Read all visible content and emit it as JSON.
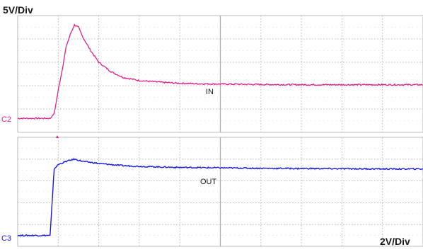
{
  "top_scale": "5V/Div",
  "bottom_scale": "2V/Div",
  "colors": {
    "c2": "#e0208a",
    "c3": "#1a1ad6",
    "grid": "#a8a8a8",
    "dots": "#c4c4c4",
    "text": "#1a1a1a"
  },
  "chart_data": [
    {
      "type": "line",
      "channel": "C2",
      "scale": "5V/Div",
      "grid": true,
      "divisions": {
        "x": 10,
        "y": 5
      },
      "series": [
        {
          "name": "IN",
          "color": "#e0208a",
          "x": [
            0,
            0.3,
            0.6,
            0.8,
            0.9,
            1.0,
            1.1,
            1.2,
            1.3,
            1.4,
            1.5,
            1.6,
            1.8,
            2.0,
            2.3,
            2.6,
            3.0,
            3.5,
            4.0,
            4.5,
            5.0,
            6.0,
            7.0,
            8.0,
            9.0,
            10.0
          ],
          "y": [
            -3.4,
            -3.4,
            -3.4,
            -3.4,
            -3.2,
            -2.2,
            -1.3,
            -0.3,
            0.2,
            0.6,
            0.5,
            0.1,
            -0.5,
            -1.0,
            -1.4,
            -1.65,
            -1.78,
            -1.85,
            -1.9,
            -1.92,
            -1.93,
            -1.95,
            -1.96,
            -1.96,
            -1.96,
            -1.96
          ]
        }
      ]
    },
    {
      "type": "line",
      "channel": "C3",
      "scale": "2V/Div",
      "grid": true,
      "divisions": {
        "x": 10,
        "y": 5
      },
      "series": [
        {
          "name": "OUT",
          "color": "#1a1ad6",
          "x": [
            0,
            0.3,
            0.6,
            0.8,
            0.85,
            0.9,
            1.0,
            1.2,
            1.4,
            1.5,
            1.6,
            1.8,
            2.0,
            2.3,
            2.6,
            3.0,
            3.5,
            4.0,
            5.0,
            6.0,
            7.0,
            8.0,
            9.0,
            10.0
          ],
          "y": [
            -4.5,
            -4.5,
            -4.5,
            -4.5,
            -3.0,
            -1.45,
            -1.25,
            -1.1,
            -1.0,
            -1.05,
            -1.1,
            -1.15,
            -1.2,
            -1.25,
            -1.3,
            -1.33,
            -1.36,
            -1.38,
            -1.4,
            -1.42,
            -1.43,
            -1.44,
            -1.45,
            -1.45
          ]
        }
      ]
    }
  ]
}
